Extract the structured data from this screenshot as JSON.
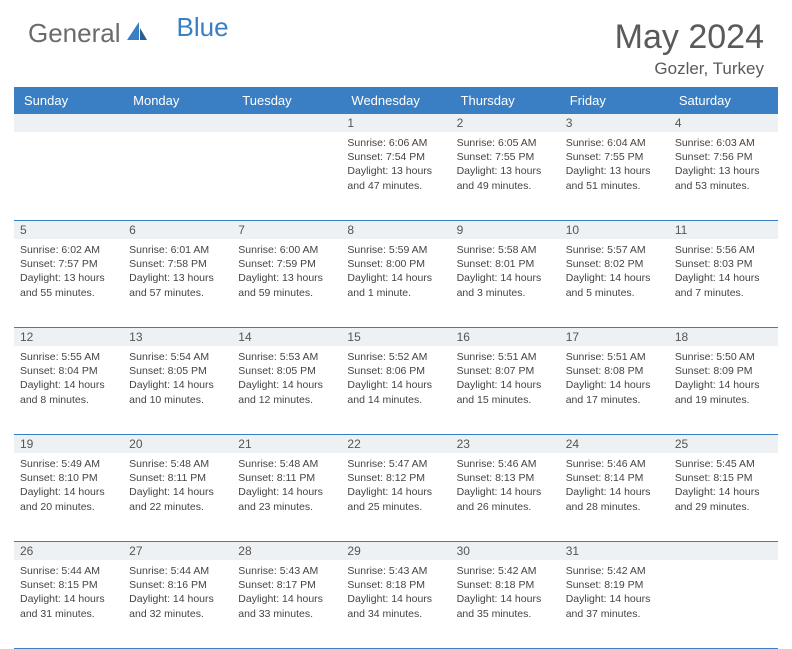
{
  "brand": {
    "text1": "General",
    "text2": "Blue"
  },
  "title": "May 2024",
  "location": "Gozler, Turkey",
  "colors": {
    "header_bg": "#3a7fc4",
    "header_text": "#ffffff",
    "daynum_bg": "#eef1f3",
    "border": "#3a7fc4",
    "body_text": "#444444",
    "title_text": "#5a5a5a"
  },
  "dayNames": [
    "Sunday",
    "Monday",
    "Tuesday",
    "Wednesday",
    "Thursday",
    "Friday",
    "Saturday"
  ],
  "weeks": [
    [
      {
        "n": "",
        "sr": "",
        "ss": "",
        "dl": ""
      },
      {
        "n": "",
        "sr": "",
        "ss": "",
        "dl": ""
      },
      {
        "n": "",
        "sr": "",
        "ss": "",
        "dl": ""
      },
      {
        "n": "1",
        "sr": "Sunrise: 6:06 AM",
        "ss": "Sunset: 7:54 PM",
        "dl": "Daylight: 13 hours and 47 minutes."
      },
      {
        "n": "2",
        "sr": "Sunrise: 6:05 AM",
        "ss": "Sunset: 7:55 PM",
        "dl": "Daylight: 13 hours and 49 minutes."
      },
      {
        "n": "3",
        "sr": "Sunrise: 6:04 AM",
        "ss": "Sunset: 7:55 PM",
        "dl": "Daylight: 13 hours and 51 minutes."
      },
      {
        "n": "4",
        "sr": "Sunrise: 6:03 AM",
        "ss": "Sunset: 7:56 PM",
        "dl": "Daylight: 13 hours and 53 minutes."
      }
    ],
    [
      {
        "n": "5",
        "sr": "Sunrise: 6:02 AM",
        "ss": "Sunset: 7:57 PM",
        "dl": "Daylight: 13 hours and 55 minutes."
      },
      {
        "n": "6",
        "sr": "Sunrise: 6:01 AM",
        "ss": "Sunset: 7:58 PM",
        "dl": "Daylight: 13 hours and 57 minutes."
      },
      {
        "n": "7",
        "sr": "Sunrise: 6:00 AM",
        "ss": "Sunset: 7:59 PM",
        "dl": "Daylight: 13 hours and 59 minutes."
      },
      {
        "n": "8",
        "sr": "Sunrise: 5:59 AM",
        "ss": "Sunset: 8:00 PM",
        "dl": "Daylight: 14 hours and 1 minute."
      },
      {
        "n": "9",
        "sr": "Sunrise: 5:58 AM",
        "ss": "Sunset: 8:01 PM",
        "dl": "Daylight: 14 hours and 3 minutes."
      },
      {
        "n": "10",
        "sr": "Sunrise: 5:57 AM",
        "ss": "Sunset: 8:02 PM",
        "dl": "Daylight: 14 hours and 5 minutes."
      },
      {
        "n": "11",
        "sr": "Sunrise: 5:56 AM",
        "ss": "Sunset: 8:03 PM",
        "dl": "Daylight: 14 hours and 7 minutes."
      }
    ],
    [
      {
        "n": "12",
        "sr": "Sunrise: 5:55 AM",
        "ss": "Sunset: 8:04 PM",
        "dl": "Daylight: 14 hours and 8 minutes."
      },
      {
        "n": "13",
        "sr": "Sunrise: 5:54 AM",
        "ss": "Sunset: 8:05 PM",
        "dl": "Daylight: 14 hours and 10 minutes."
      },
      {
        "n": "14",
        "sr": "Sunrise: 5:53 AM",
        "ss": "Sunset: 8:05 PM",
        "dl": "Daylight: 14 hours and 12 minutes."
      },
      {
        "n": "15",
        "sr": "Sunrise: 5:52 AM",
        "ss": "Sunset: 8:06 PM",
        "dl": "Daylight: 14 hours and 14 minutes."
      },
      {
        "n": "16",
        "sr": "Sunrise: 5:51 AM",
        "ss": "Sunset: 8:07 PM",
        "dl": "Daylight: 14 hours and 15 minutes."
      },
      {
        "n": "17",
        "sr": "Sunrise: 5:51 AM",
        "ss": "Sunset: 8:08 PM",
        "dl": "Daylight: 14 hours and 17 minutes."
      },
      {
        "n": "18",
        "sr": "Sunrise: 5:50 AM",
        "ss": "Sunset: 8:09 PM",
        "dl": "Daylight: 14 hours and 19 minutes."
      }
    ],
    [
      {
        "n": "19",
        "sr": "Sunrise: 5:49 AM",
        "ss": "Sunset: 8:10 PM",
        "dl": "Daylight: 14 hours and 20 minutes."
      },
      {
        "n": "20",
        "sr": "Sunrise: 5:48 AM",
        "ss": "Sunset: 8:11 PM",
        "dl": "Daylight: 14 hours and 22 minutes."
      },
      {
        "n": "21",
        "sr": "Sunrise: 5:48 AM",
        "ss": "Sunset: 8:11 PM",
        "dl": "Daylight: 14 hours and 23 minutes."
      },
      {
        "n": "22",
        "sr": "Sunrise: 5:47 AM",
        "ss": "Sunset: 8:12 PM",
        "dl": "Daylight: 14 hours and 25 minutes."
      },
      {
        "n": "23",
        "sr": "Sunrise: 5:46 AM",
        "ss": "Sunset: 8:13 PM",
        "dl": "Daylight: 14 hours and 26 minutes."
      },
      {
        "n": "24",
        "sr": "Sunrise: 5:46 AM",
        "ss": "Sunset: 8:14 PM",
        "dl": "Daylight: 14 hours and 28 minutes."
      },
      {
        "n": "25",
        "sr": "Sunrise: 5:45 AM",
        "ss": "Sunset: 8:15 PM",
        "dl": "Daylight: 14 hours and 29 minutes."
      }
    ],
    [
      {
        "n": "26",
        "sr": "Sunrise: 5:44 AM",
        "ss": "Sunset: 8:15 PM",
        "dl": "Daylight: 14 hours and 31 minutes."
      },
      {
        "n": "27",
        "sr": "Sunrise: 5:44 AM",
        "ss": "Sunset: 8:16 PM",
        "dl": "Daylight: 14 hours and 32 minutes."
      },
      {
        "n": "28",
        "sr": "Sunrise: 5:43 AM",
        "ss": "Sunset: 8:17 PM",
        "dl": "Daylight: 14 hours and 33 minutes."
      },
      {
        "n": "29",
        "sr": "Sunrise: 5:43 AM",
        "ss": "Sunset: 8:18 PM",
        "dl": "Daylight: 14 hours and 34 minutes."
      },
      {
        "n": "30",
        "sr": "Sunrise: 5:42 AM",
        "ss": "Sunset: 8:18 PM",
        "dl": "Daylight: 14 hours and 35 minutes."
      },
      {
        "n": "31",
        "sr": "Sunrise: 5:42 AM",
        "ss": "Sunset: 8:19 PM",
        "dl": "Daylight: 14 hours and 37 minutes."
      },
      {
        "n": "",
        "sr": "",
        "ss": "",
        "dl": ""
      }
    ]
  ]
}
